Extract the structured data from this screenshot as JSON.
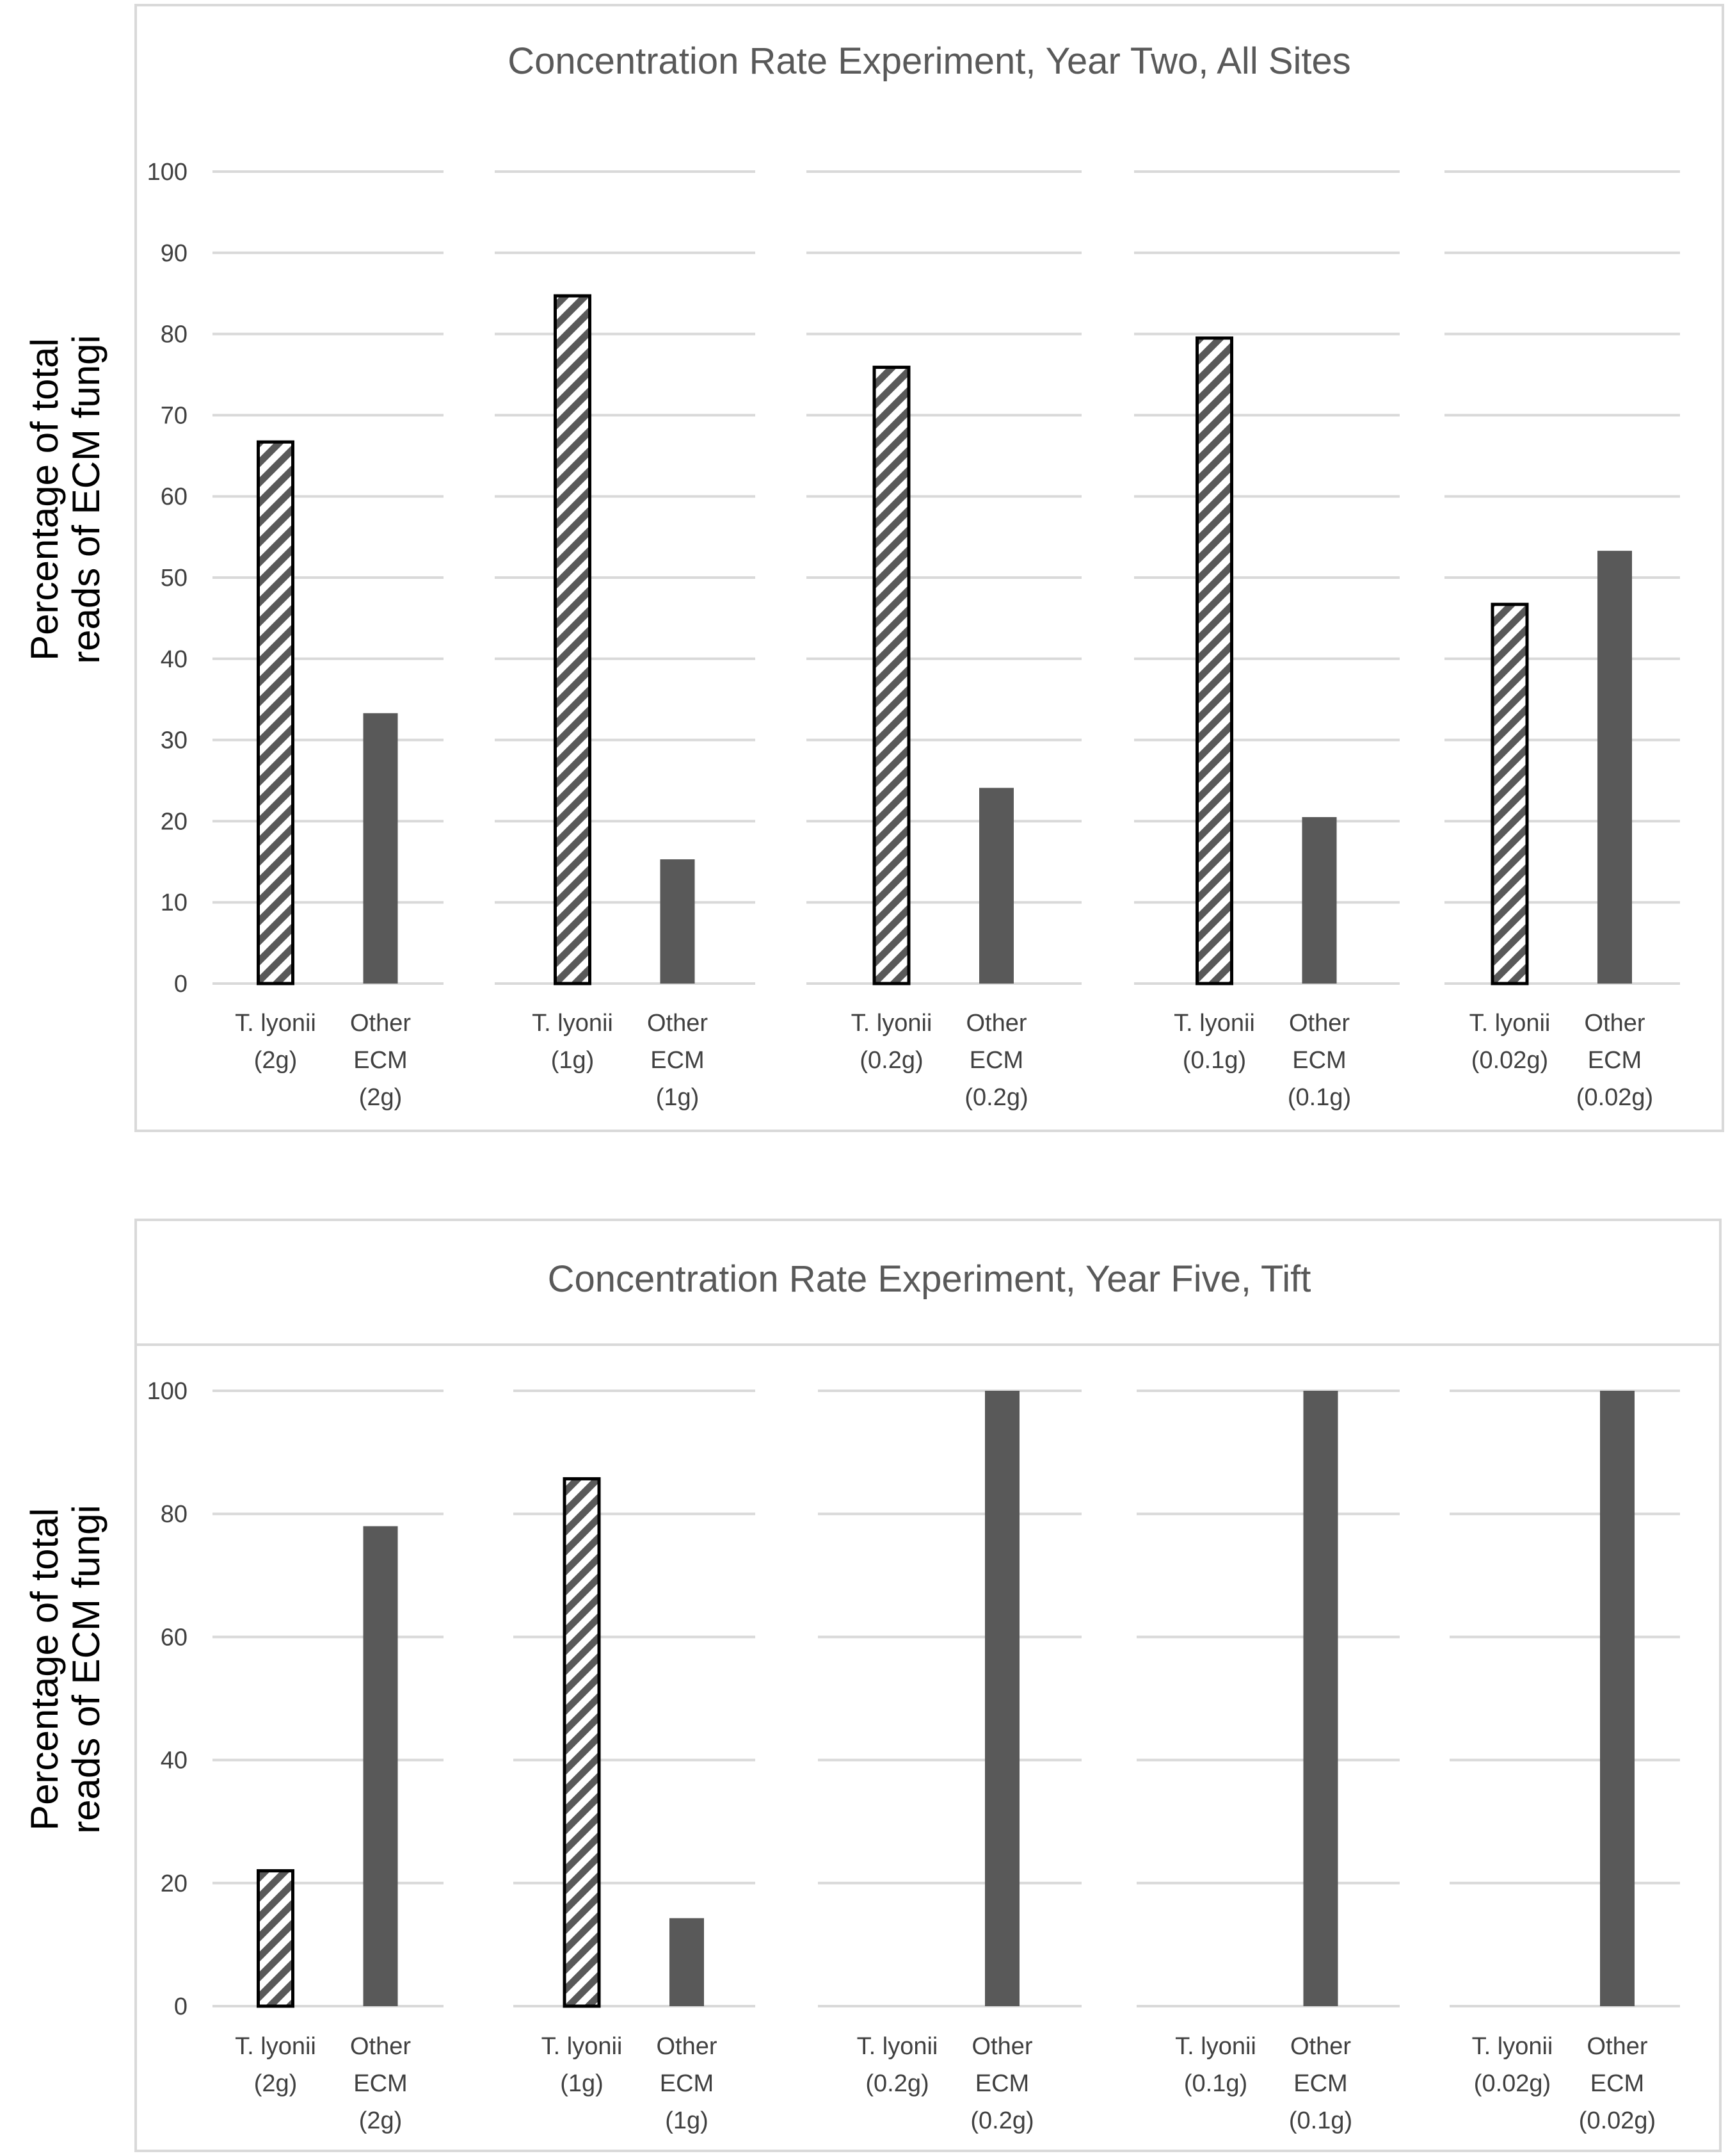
{
  "chart_data": [
    {
      "type": "bar",
      "title": "Concentration Rate Experiment, Year Two, All Sites",
      "ylabel": "Percentage of total reads of ECM fungi",
      "ylabel_lines": [
        "Percentage of total",
        "reads of ECM fungi"
      ],
      "ylim": [
        0,
        100
      ],
      "yticks": [
        0,
        10,
        20,
        30,
        40,
        50,
        60,
        70,
        80,
        90,
        100
      ],
      "grid": true,
      "groups": [
        {
          "name": "2g",
          "bars": [
            {
              "series": "T. lyonii",
              "label_lines": [
                "T. lyonii",
                "(2g)"
              ],
              "value": 66.7
            },
            {
              "series": "Other ECM",
              "label_lines": [
                "Other",
                "ECM",
                "(2g)"
              ],
              "value": 33.3
            }
          ]
        },
        {
          "name": "1g",
          "bars": [
            {
              "series": "T. lyonii",
              "label_lines": [
                "T. lyonii",
                "(1g)"
              ],
              "value": 84.7
            },
            {
              "series": "Other ECM",
              "label_lines": [
                "Other",
                "ECM",
                "(1g)"
              ],
              "value": 15.3
            }
          ]
        },
        {
          "name": "0.2g",
          "bars": [
            {
              "series": "T. lyonii",
              "label_lines": [
                "T. lyonii",
                "(0.2g)"
              ],
              "value": 75.9
            },
            {
              "series": "Other ECM",
              "label_lines": [
                "Other",
                "ECM",
                "(0.2g)"
              ],
              "value": 24.1
            }
          ]
        },
        {
          "name": "0.1g",
          "bars": [
            {
              "series": "T. lyonii",
              "label_lines": [
                "T. lyonii",
                "(0.1g)"
              ],
              "value": 79.5
            },
            {
              "series": "Other ECM",
              "label_lines": [
                "Other",
                "ECM",
                "(0.1g)"
              ],
              "value": 20.5
            }
          ]
        },
        {
          "name": "0.02g",
          "bars": [
            {
              "series": "T. lyonii",
              "label_lines": [
                "T. lyonii",
                "(0.02g)"
              ],
              "value": 46.7
            },
            {
              "series": "Other ECM",
              "label_lines": [
                "Other",
                "ECM",
                "(0.02g)"
              ],
              "value": 53.3
            }
          ]
        }
      ]
    },
    {
      "type": "bar",
      "title": "Concentration Rate Experiment, Year Five, Tift",
      "ylabel": "Percentage of total reads of ECM fungi",
      "ylabel_lines": [
        "Percentage of total",
        "reads of ECM fungi"
      ],
      "ylim": [
        0,
        100
      ],
      "yticks": [
        0,
        20,
        40,
        60,
        80,
        100
      ],
      "grid": true,
      "groups": [
        {
          "name": "2g",
          "bars": [
            {
              "series": "T. lyonii",
              "label_lines": [
                "T. lyonii",
                "(2g)"
              ],
              "value": 22
            },
            {
              "series": "Other ECM",
              "label_lines": [
                "Other",
                "ECM",
                "(2g)"
              ],
              "value": 78
            }
          ]
        },
        {
          "name": "1g",
          "bars": [
            {
              "series": "T. lyonii",
              "label_lines": [
                "T. lyonii",
                "(1g)"
              ],
              "value": 85.7
            },
            {
              "series": "Other ECM",
              "label_lines": [
                "Other",
                "ECM",
                "(1g)"
              ],
              "value": 14.3
            }
          ]
        },
        {
          "name": "0.2g",
          "bars": [
            {
              "series": "T. lyonii",
              "label_lines": [
                "T. lyonii",
                "(0.2g)"
              ],
              "value": 0
            },
            {
              "series": "Other ECM",
              "label_lines": [
                "Other",
                "ECM",
                "(0.2g)"
              ],
              "value": 100
            }
          ]
        },
        {
          "name": "0.1g",
          "bars": [
            {
              "series": "T. lyonii",
              "label_lines": [
                "T. lyonii",
                "(0.1g)"
              ],
              "value": 0
            },
            {
              "series": "Other ECM",
              "label_lines": [
                "Other",
                "ECM",
                "(0.1g)"
              ],
              "value": 100
            }
          ]
        },
        {
          "name": "0.02g",
          "bars": [
            {
              "series": "T. lyonii",
              "label_lines": [
                "T. lyonii",
                "(0.02g)"
              ],
              "value": 0
            },
            {
              "series": "Other ECM",
              "label_lines": [
                "Other",
                "ECM",
                "(0.02g)"
              ],
              "value": 100
            }
          ]
        }
      ]
    }
  ],
  "colors": {
    "t_lyonii_hatch": "#595959",
    "t_lyonii_outline": "#000000",
    "other_ecm_fill": "#595959",
    "gridline": "#d9d9d9",
    "text": "#595959"
  }
}
